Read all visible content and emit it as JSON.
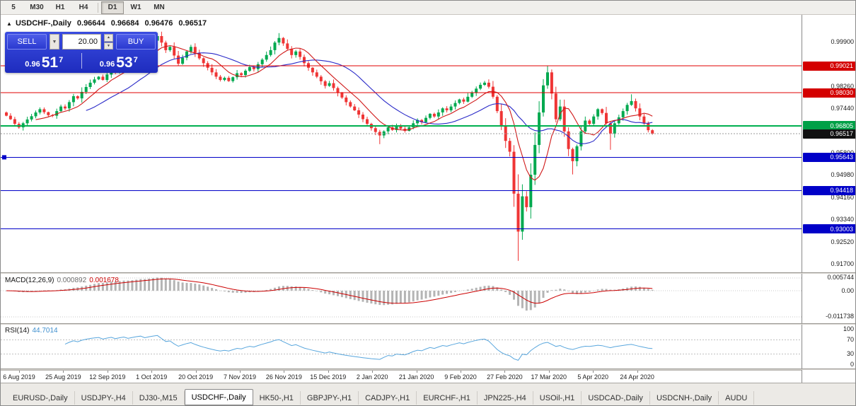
{
  "toolbar": {
    "buttons": [
      "5",
      "M30",
      "H1",
      "H4",
      "D1",
      "W1",
      "MN"
    ],
    "active": "D1",
    "separator_after_index": 3
  },
  "chart": {
    "symbol_header": {
      "icon_glyph": "▲",
      "title": "USDCHF-,Daily",
      "open": "0.96644",
      "high": "0.96684",
      "low": "0.96476",
      "close": "0.96517"
    },
    "trade_panel": {
      "sell_label": "SELL",
      "buy_label": "BUY",
      "volume": "20.00",
      "dropdown_glyph": "▼",
      "spin_up_glyph": "▲",
      "spin_down_glyph": "▼",
      "sell_price": {
        "prefix": "0.96",
        "big": "51",
        "sup": "7"
      },
      "buy_price": {
        "prefix": "0.96",
        "big": "53",
        "sup": "7"
      }
    },
    "price_range": [
      0.915,
      1.008
    ],
    "scale": {
      "labels": [
        {
          "text": "0.99900",
          "value": 0.999
        },
        {
          "text": "0.98260",
          "value": 0.9826
        },
        {
          "text": "0.97440",
          "value": 0.9744
        },
        {
          "text": "0.95800",
          "value": 0.958
        },
        {
          "text": "0.94980",
          "value": 0.9498
        },
        {
          "text": "0.94160",
          "value": 0.9416
        },
        {
          "text": "0.93340",
          "value": 0.9334
        },
        {
          "text": "0.92520",
          "value": 0.9252
        },
        {
          "text": "0.91700",
          "value": 0.917
        }
      ]
    },
    "hlines": [
      {
        "value": 0.99021,
        "color": "#e00000",
        "width": 1,
        "tag": "0.99021",
        "tag_bg": "#d40000"
      },
      {
        "value": 0.9803,
        "color": "#e00000",
        "width": 1,
        "tag": "0.98030",
        "tag_bg": "#d40000"
      },
      {
        "value": 0.96805,
        "color": "#00b050",
        "width": 2,
        "tag": "0.96805",
        "tag_bg": "#00a047"
      },
      {
        "value": 0.95643,
        "color": "#0000c8",
        "width": 1,
        "tag": "0.95643",
        "tag_bg": "#0000c8",
        "marker": true
      },
      {
        "value": 0.94418,
        "color": "#0000c8",
        "width": 1,
        "tag": "0.94418",
        "tag_bg": "#0000c8"
      },
      {
        "value": 0.93003,
        "color": "#0000c8",
        "width": 1,
        "tag": "0.93003",
        "tag_bg": "#0000c8"
      }
    ],
    "bid": {
      "value": 0.96517,
      "tag": "0.96517",
      "tag_bg": "#111111",
      "line_color": "#9a9a9a"
    }
  },
  "chart_data": {
    "type": "candlestick",
    "symbol": "USDCHF",
    "period": "Daily",
    "first_open": 0.973,
    "closes": [
      0.9718,
      0.9705,
      0.9688,
      0.9675,
      0.969,
      0.9704,
      0.9716,
      0.973,
      0.9742,
      0.9731,
      0.972,
      0.9718,
      0.9735,
      0.9752,
      0.9745,
      0.9768,
      0.979,
      0.9782,
      0.9806,
      0.9824,
      0.984,
      0.9852,
      0.9862,
      0.985,
      0.987,
      0.9888,
      0.9878,
      0.9898,
      0.9915,
      0.9905,
      0.9925,
      0.9945,
      0.9962,
      0.995,
      0.9975,
      0.9995,
      1.0012,
      0.9988,
      0.996,
      0.9972,
      0.994,
      0.991,
      0.9932,
      0.9955,
      0.9972,
      0.995,
      0.993,
      0.9912,
      0.9895,
      0.9878,
      0.9862,
      0.985,
      0.9858,
      0.9846,
      0.986,
      0.9875,
      0.9868,
      0.9884,
      0.9898,
      0.989,
      0.9908,
      0.9925,
      0.9942,
      0.996,
      0.9988,
      1.0005,
      0.9985,
      0.9965,
      0.9942,
      0.9955,
      0.9935,
      0.9912,
      0.9895,
      0.9878,
      0.9862,
      0.9845,
      0.9828,
      0.9838,
      0.982,
      0.9802,
      0.9785,
      0.9768,
      0.9752,
      0.9738,
      0.9722,
      0.9705,
      0.9688,
      0.9672,
      0.9658,
      0.9645,
      0.966,
      0.9675,
      0.9665,
      0.968,
      0.967,
      0.9662,
      0.9675,
      0.969,
      0.9702,
      0.9694,
      0.971,
      0.9725,
      0.9715,
      0.973,
      0.9745,
      0.9738,
      0.9752,
      0.9765,
      0.9778,
      0.977,
      0.9788,
      0.9802,
      0.9818,
      0.9832,
      0.984,
      0.9825,
      0.9788,
      0.9735,
      0.968,
      0.9625,
      0.9585,
      0.943,
      0.929,
      0.942,
      0.938,
      0.95,
      0.961,
      0.973,
      0.983,
      0.9878,
      0.98,
      0.9705,
      0.9752,
      0.966,
      0.9595,
      0.955,
      0.9605,
      0.966,
      0.97,
      0.9688,
      0.9715,
      0.9742,
      0.9728,
      0.969,
      0.9652,
      0.969,
      0.9712,
      0.9735,
      0.9758,
      0.9772,
      0.9745,
      0.9715,
      0.969,
      0.96644,
      0.96517
    ],
    "wick_overrides": {
      "36": {
        "h": 1.0023
      },
      "41": {
        "l": 0.9903
      },
      "65": {
        "h": 1.0023
      },
      "89": {
        "l": 0.9613
      },
      "122": {
        "l": 0.9182
      },
      "129": {
        "h": 0.9901
      },
      "135": {
        "l": 0.9501
      },
      "144": {
        "l": 0.9592
      },
      "149": {
        "h": 0.9797
      },
      "154": {
        "h": 0.96684,
        "l": 0.96476
      }
    },
    "colors": {
      "up": "#00a94f",
      "down": "#ef3535"
    },
    "indicators": {
      "ma": [
        {
          "period": 20,
          "color": "#2a2ac8"
        },
        {
          "period": 8,
          "color": "#d01818"
        }
      ],
      "macd": {
        "fast": 12,
        "slow": 26,
        "signal": 9,
        "histogram_color": "#b4b4b4",
        "signal_color": "#cc0000",
        "range": [
          -0.014,
          0.007
        ]
      },
      "rsi": {
        "period": 14,
        "color": "#58a6dd",
        "levels": [
          70,
          30
        ],
        "range": [
          -14,
          112
        ]
      }
    },
    "x_labels": [
      "6 Aug 2019",
      "25 Aug 2019",
      "12 Sep 2019",
      "1 Oct 2019",
      "20 Oct 2019",
      "7 Nov 2019",
      "26 Nov 2019",
      "15 Dec 2019",
      "2 Jan 2020",
      "21 Jan 2020",
      "9 Feb 2020",
      "27 Feb 2020",
      "17 Mar 2020",
      "5 Apr 2020",
      "24 Apr 2020"
    ]
  },
  "macd": {
    "label": "MACD(12,26,9)",
    "value_main": "0.000892",
    "value_signal": "0.001678",
    "scale_labels": [
      {
        "text": "0.005744",
        "value": 0.005744
      },
      {
        "text": "0.00",
        "value": 0
      },
      {
        "text": "-0.011738",
        "value": -0.011738
      }
    ]
  },
  "rsi": {
    "label": "RSI(14)",
    "value": "44.7014",
    "scale_labels": [
      {
        "text": "100",
        "value": 100
      },
      {
        "text": "70",
        "value": 70
      },
      {
        "text": "30",
        "value": 30
      },
      {
        "text": "0",
        "value": 0
      }
    ]
  },
  "tabs": {
    "items": [
      "EURUSD-,Daily",
      "USDJPY-,H4",
      "DJ30-,M15",
      "USDCHF-,Daily",
      "HK50-,H1",
      "GBPJPY-,H1",
      "CADJPY-,H1",
      "EURCHF-,H1",
      "JPN225-,H4",
      "USOil-,H1",
      "USDCAD-,Daily",
      "USDCNH-,Daily",
      "AUDU"
    ],
    "active_index": 3
  }
}
